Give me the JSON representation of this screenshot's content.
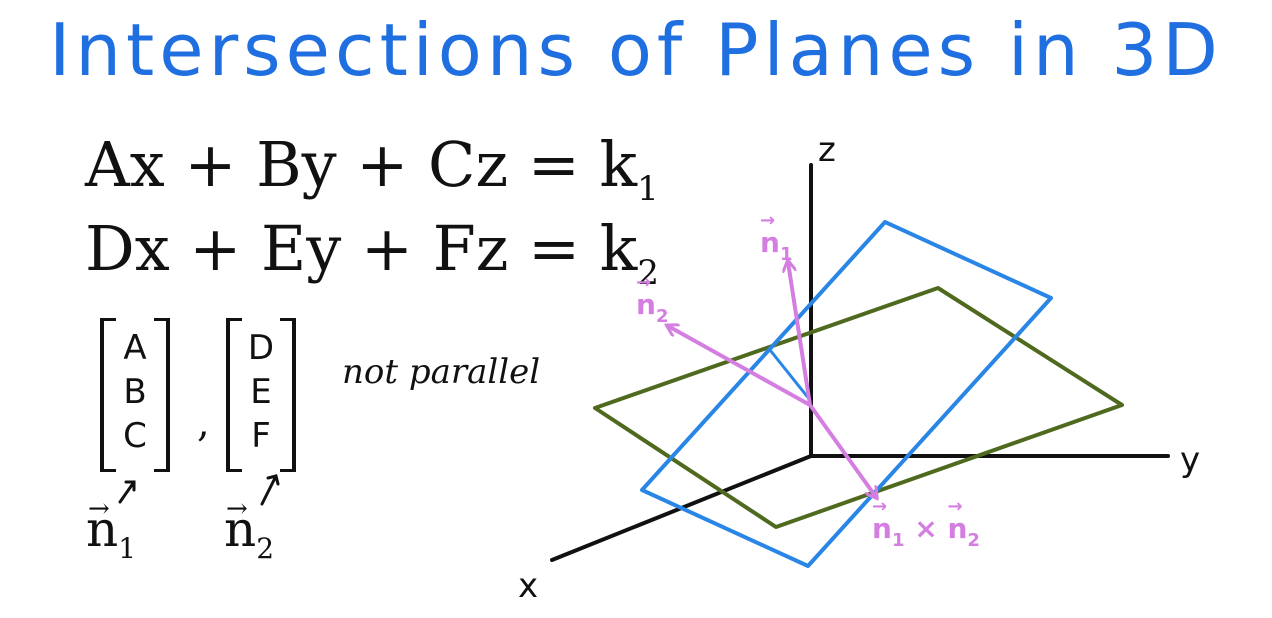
{
  "title": "Intersections of Planes in 3D",
  "colors": {
    "title": "#1f6fe0",
    "ink": "#111111",
    "plane_1": "#2a86e6",
    "plane_2": "#4f6a1e",
    "normals": "#d57ee2"
  },
  "equations": {
    "eq1": {
      "lhs": "Ax + By + Cz = k",
      "sub": "1"
    },
    "eq2": {
      "lhs": "Dx + Ey + Fz = k",
      "sub": "2"
    }
  },
  "vectors": {
    "v1": {
      "entries": [
        "A",
        "B",
        "C"
      ],
      "name": "n",
      "sub": "1"
    },
    "v2": {
      "entries": [
        "D",
        "E",
        "F"
      ],
      "name": "n",
      "sub": "2"
    },
    "separator": ",",
    "note": "not parallel"
  },
  "axes": {
    "x": "x",
    "y": "y",
    "z": "z"
  },
  "normal_labels": {
    "n1": {
      "name": "n",
      "sub": "1"
    },
    "n2": {
      "name": "n",
      "sub": "2"
    },
    "cross": {
      "a": "n",
      "a_sub": "1",
      "op": "×",
      "b": "n",
      "b_sub": "2"
    }
  }
}
